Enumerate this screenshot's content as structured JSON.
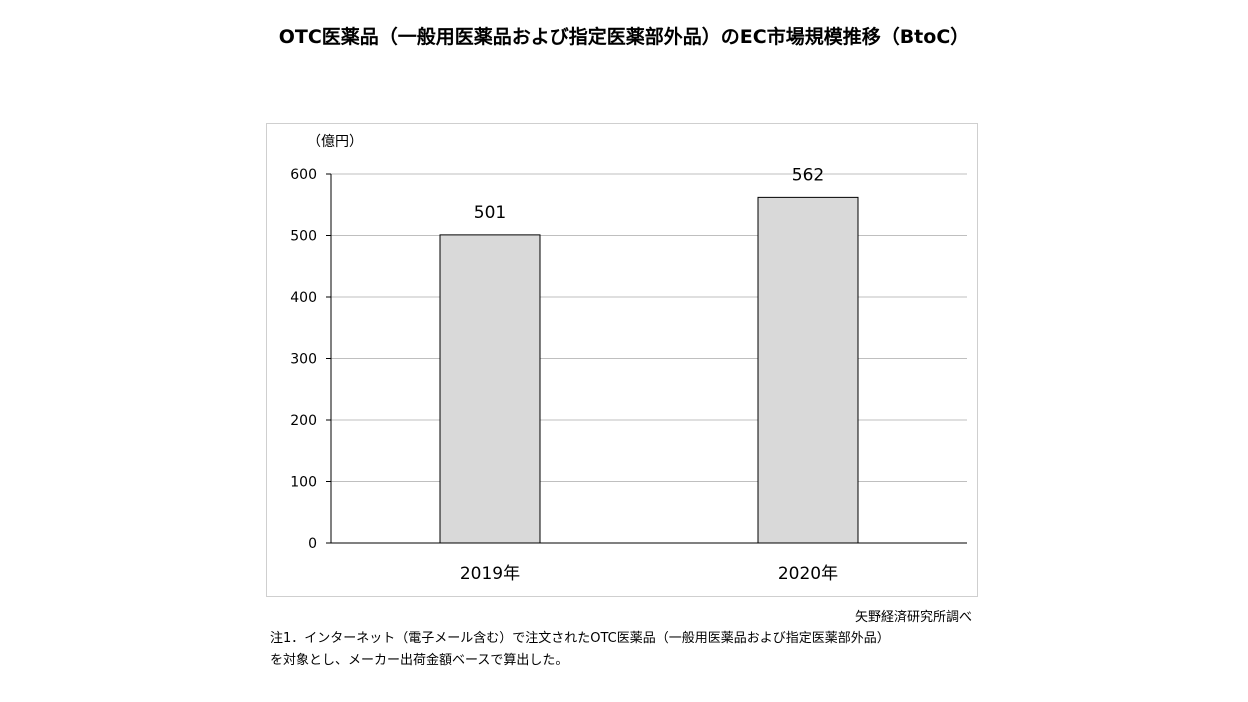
{
  "chart_data": {
    "type": "bar",
    "title": "OTC医薬品（一般用医薬品および指定医薬部外品）のEC市場規模推移（BtoC）",
    "ylabel": "（億円）",
    "xlabel": "",
    "categories": [
      "2019年",
      "2020年"
    ],
    "values": [
      501,
      562
    ],
    "data_labels": [
      "501",
      "562"
    ],
    "ylim": [
      0,
      600
    ],
    "yticks": [
      "0",
      "100",
      "200",
      "300",
      "400",
      "500",
      "600"
    ],
    "grid": true,
    "legend": "none",
    "bar_color": "#d9d9d9",
    "bar_border_color": "#000000",
    "grid_color": "#bfbfbf"
  },
  "source": "矢野経済研究所調べ",
  "notes": [
    "注1．インターネット（電子メール含む）で注文されたOTC医薬品（一般用医薬品および指定医薬部外品）",
    "を対象とし、メーカー出荷金額ベースで算出した。"
  ]
}
